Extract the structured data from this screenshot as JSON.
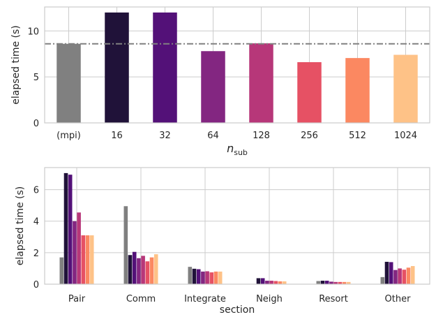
{
  "chart_data": [
    {
      "type": "bar",
      "categories": [
        "(mpi)",
        "16",
        "32",
        "64",
        "128",
        "256",
        "512",
        "1024"
      ],
      "values": [
        8.6,
        12.0,
        12.0,
        7.8,
        8.65,
        6.6,
        7.05,
        7.4
      ],
      "colors": [
        "#808080",
        "#201239",
        "#531178",
        "#832681",
        "#b73779",
        "#e65164",
        "#fb8861",
        "#fec287"
      ],
      "reference_line": 8.6,
      "ylabel": "elapsed time (s)",
      "xlabel_main": "n",
      "xlabel_sub": "sub",
      "ylim": [
        0,
        12.6
      ],
      "yticks": [
        0,
        5,
        10
      ],
      "grid": true
    },
    {
      "type": "bar",
      "categories": [
        "Pair",
        "Comm",
        "Integrate",
        "Neigh",
        "Resort",
        "Other"
      ],
      "series": [
        {
          "values": [
            1.7,
            4.95,
            1.1,
            0.02,
            0.2,
            0.45
          ]
        },
        {
          "values": [
            7.05,
            1.85,
            0.98,
            0.38,
            0.22,
            1.42
          ]
        },
        {
          "values": [
            6.95,
            2.05,
            0.95,
            0.38,
            0.22,
            1.4
          ]
        },
        {
          "values": [
            4.0,
            1.65,
            0.8,
            0.22,
            0.16,
            0.9
          ]
        },
        {
          "values": [
            4.55,
            1.8,
            0.82,
            0.22,
            0.14,
            1.0
          ]
        },
        {
          "values": [
            3.1,
            1.45,
            0.75,
            0.2,
            0.14,
            0.92
          ]
        },
        {
          "values": [
            3.1,
            1.7,
            0.8,
            0.18,
            0.14,
            1.05
          ]
        },
        {
          "values": [
            3.1,
            1.9,
            0.8,
            0.18,
            0.14,
            1.15
          ]
        }
      ],
      "colors": [
        "#808080",
        "#201239",
        "#531178",
        "#832681",
        "#b73779",
        "#e65164",
        "#fb8861",
        "#fec287"
      ],
      "ylabel": "elapsed time (s)",
      "xlabel": "section",
      "ylim": [
        0,
        7.4
      ],
      "yticks": [
        0,
        2,
        4,
        6
      ],
      "grid": true
    }
  ]
}
